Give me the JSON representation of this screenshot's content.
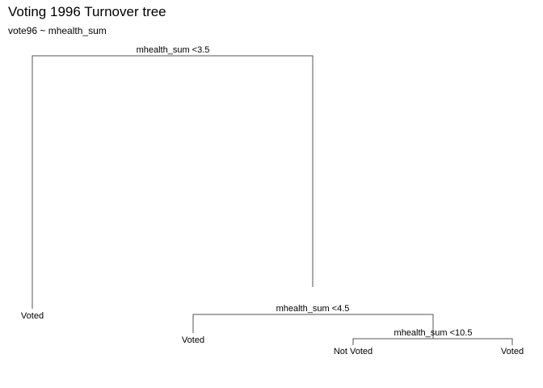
{
  "title": "Voting 1996 Turnover tree",
  "subtitle": "vote96 ~ mhealth_sum",
  "tree": {
    "splits": [
      {
        "id": "n1",
        "label": "mhealth_sum <3.5",
        "left": "leaf1",
        "right": "n2"
      },
      {
        "id": "n2",
        "label": "mhealth_sum <4.5",
        "left": "leaf2",
        "right": "n3"
      },
      {
        "id": "n3",
        "label": "mhealth_sum <10.5",
        "left": "leaf3",
        "right": "leaf4"
      }
    ],
    "leaves": [
      {
        "id": "leaf1",
        "label": "Voted"
      },
      {
        "id": "leaf2",
        "label": "Voted"
      },
      {
        "id": "leaf3",
        "label": "Not Voted"
      },
      {
        "id": "leaf4",
        "label": "Voted"
      }
    ]
  }
}
